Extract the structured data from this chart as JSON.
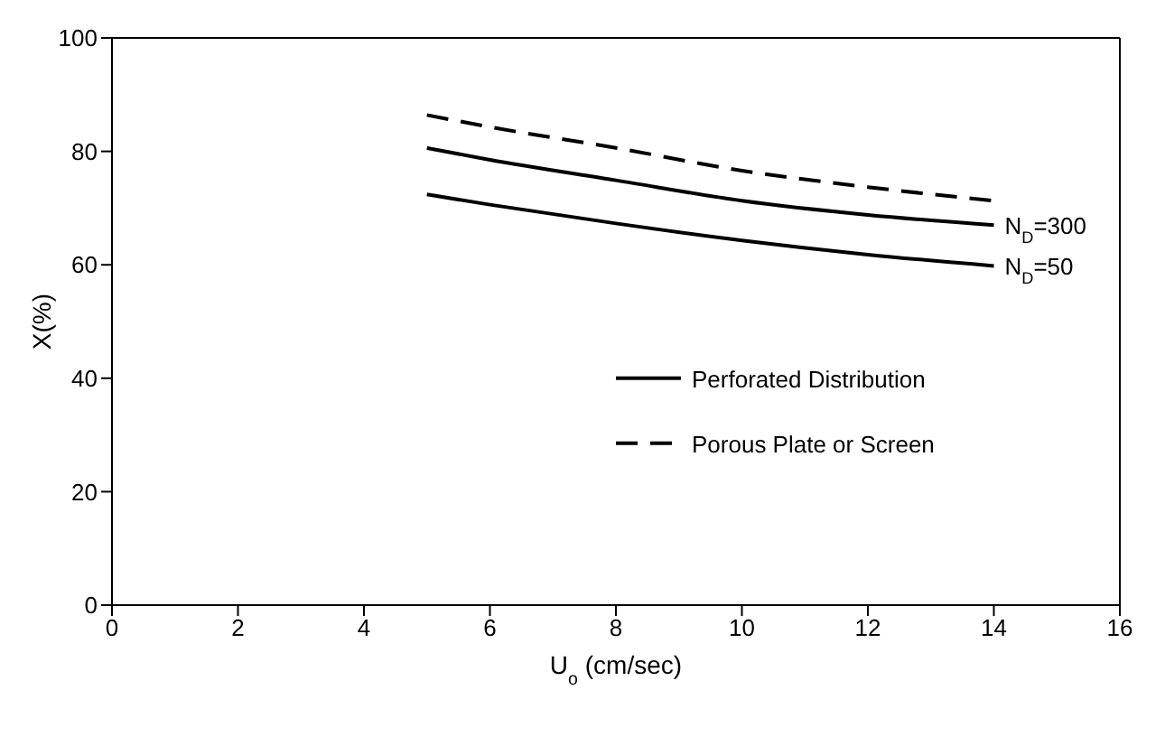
{
  "chart_data": {
    "type": "line",
    "xlabel": "U$_{o}$ (cm/sec)",
    "ylabel": "X(%)",
    "x": [
      5,
      6,
      8,
      10,
      12,
      14
    ],
    "series": [
      {
        "name": "Porous Plate or Screen",
        "color": "#000000",
        "line_style": "dashed",
        "values": [
          86.4,
          84.3,
          80.6,
          76.6,
          73.7,
          71.3
        ]
      },
      {
        "name": "N$_{D}$=300",
        "color": "#000000",
        "line_style": "solid",
        "values": [
          80.6,
          78.5,
          74.9,
          71.3,
          68.8,
          67.0
        ]
      },
      {
        "name": "N$_{D}$=50",
        "color": "#000000",
        "line_style": "solid",
        "values": [
          72.4,
          70.6,
          67.3,
          64.3,
          61.8,
          59.8
        ]
      }
    ],
    "annotations": [
      "Perforated Distribution"
    ],
    "xlim": [
      0,
      16
    ],
    "xticks": [
      0,
      2,
      4,
      6,
      8,
      10,
      12,
      14,
      16
    ],
    "ylim": [
      0,
      100
    ],
    "yticks": [
      0,
      20,
      40,
      60,
      80,
      100
    ],
    "grid": false,
    "legend": "center right",
    "marker": "none"
  }
}
